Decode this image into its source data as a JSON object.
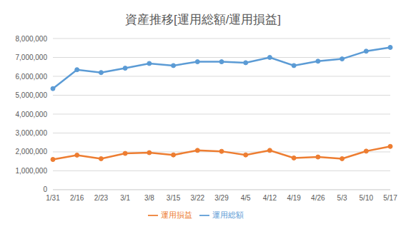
{
  "chart_data": {
    "type": "line",
    "title": "資産推移[運用総額/運用損益]",
    "categories": [
      "1/31",
      "2/16",
      "2/23",
      "3/1",
      "3/8",
      "3/15",
      "3/22",
      "3/29",
      "4/5",
      "4/12",
      "4/19",
      "4/26",
      "5/3",
      "5/10",
      "5/17"
    ],
    "series": [
      {
        "name": "運用総額",
        "color": "#5b9bd5",
        "marker": "circle",
        "values": [
          5350000,
          6350000,
          6200000,
          6430000,
          6680000,
          6570000,
          6770000,
          6770000,
          6720000,
          7000000,
          6570000,
          6800000,
          6920000,
          7330000,
          7530000
        ]
      },
      {
        "name": "運用損益",
        "color": "#ed7d31",
        "marker": "circle",
        "values": [
          1600000,
          1830000,
          1640000,
          1920000,
          1960000,
          1840000,
          2080000,
          2030000,
          1840000,
          2080000,
          1680000,
          1730000,
          1640000,
          2040000,
          2290000
        ]
      }
    ],
    "ylim": [
      0,
      8000000
    ],
    "yticks": [
      0,
      {
        "value": 1000000,
        "label": "1,000,000"
      },
      {
        "value": 2000000,
        "label": "2,000,000"
      },
      {
        "value": 3000000,
        "label": "3,000,000"
      },
      {
        "value": 4000000,
        "label": "4,000,000"
      },
      {
        "value": 5000000,
        "label": "5,000,000"
      },
      {
        "value": 6000000,
        "label": "6,000,000"
      },
      {
        "value": 7000000,
        "label": "7,000,000"
      },
      {
        "value": 8000000,
        "label": "8,000,000"
      }
    ],
    "grid": true,
    "legend": "bottom"
  }
}
